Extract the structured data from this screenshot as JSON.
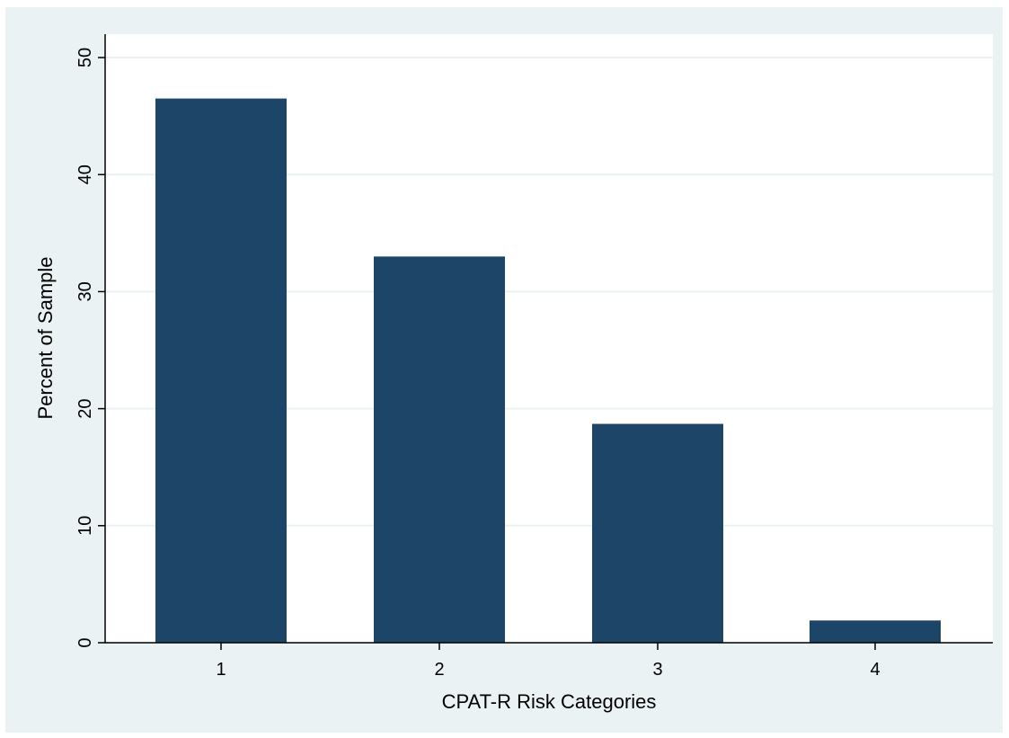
{
  "chart_data": {
    "type": "bar",
    "title": "",
    "xlabel": "CPAT-R Risk Categories",
    "ylabel": "Percent of Sample",
    "categories": [
      "1",
      "2",
      "3",
      "4"
    ],
    "values": [
      46.5,
      33.0,
      18.7,
      1.9
    ],
    "ylim": [
      0,
      52
    ],
    "yticks": [
      0,
      10,
      20,
      30,
      40,
      50
    ],
    "grid": true,
    "legend": "none",
    "bar_color": "#1c4568",
    "plot_background": "#ffffff",
    "frame_background": "#eaf2f3",
    "gridline_color": "#eaf2f3"
  }
}
